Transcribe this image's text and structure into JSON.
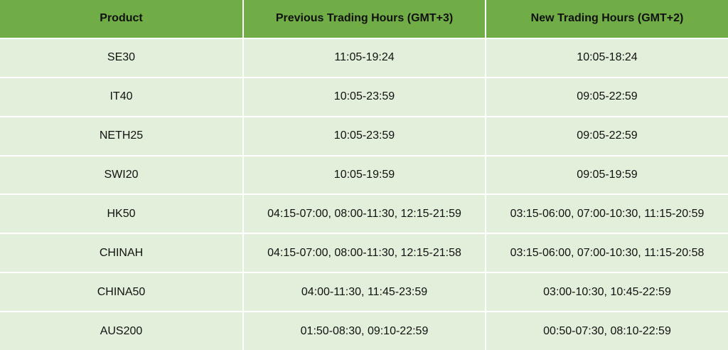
{
  "table": {
    "header": [
      "Product",
      "Previous Trading Hours (GMT+3)",
      "New Trading Hours (GMT+2)"
    ],
    "rows": [
      [
        "SE30",
        "11:05-19:24",
        "10:05-18:24"
      ],
      [
        "IT40",
        "10:05-23:59",
        "09:05-22:59"
      ],
      [
        "NETH25",
        "10:05-23:59",
        "09:05-22:59"
      ],
      [
        "SWI20",
        "10:05-19:59",
        "09:05-19:59"
      ],
      [
        "HK50",
        "04:15-07:00, 08:00-11:30, 12:15-21:59",
        "03:15-06:00, 07:00-10:30, 11:15-20:59"
      ],
      [
        "CHINAH",
        "04:15-07:00, 08:00-11:30, 12:15-21:58",
        "03:15-06:00, 07:00-10:30, 11:15-20:58"
      ],
      [
        "CHINA50",
        "04:00-11:30, 11:45-23:59",
        "03:00-10:30, 10:45-22:59"
      ],
      [
        "AUS200",
        "01:50-08:30, 09:10-22:59",
        "00:50-07:30, 08:10-22:59"
      ]
    ]
  }
}
